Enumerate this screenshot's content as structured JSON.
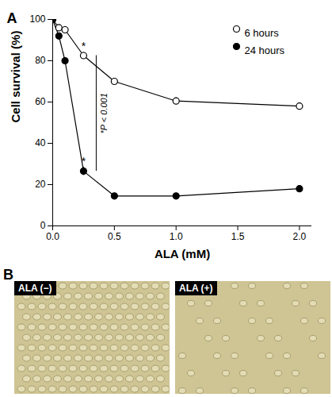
{
  "chart_data": {
    "type": "line",
    "panel": "A",
    "x_label": "ALA (mM)",
    "y_label": "Cell survival (%)",
    "x": [
      0,
      0.05,
      0.1,
      0.25,
      0.5,
      1.0,
      2.0
    ],
    "series": [
      {
        "name": "6 hours",
        "color": "#000000",
        "marker": "open circle",
        "values": [
          100,
          96,
          95,
          82.5,
          70,
          60.5,
          58
        ],
        "error": [
          0,
          1,
          1,
          1.5,
          1,
          1.5,
          1.5
        ]
      },
      {
        "name": "24 hours",
        "color": "#000000",
        "marker": "filled circle",
        "values": [
          100,
          92,
          80,
          26.5,
          14.5,
          14.5,
          18
        ],
        "error": [
          0,
          1.5,
          0.5,
          2,
          0.5,
          0.5,
          0.5
        ]
      }
    ],
    "xlim": [
      0,
      2.1
    ],
    "xticks": [
      {
        "value": 0,
        "label": "0.0"
      },
      0.5,
      {
        "value": 1,
        "label": "1.0"
      },
      1.5,
      {
        "value": 2,
        "label": "2.0"
      }
    ],
    "ylim": [
      0,
      100
    ],
    "yticks": [
      0,
      20,
      40,
      60,
      80,
      100
    ],
    "legend": "top-right",
    "annotations": [
      {
        "text": "*",
        "x": 0.25,
        "y": 87
      },
      {
        "text": "*",
        "x": 0.25,
        "y": 31
      }
    ],
    "comparison": {
      "text": "*P < 0.001",
      "x": 0.25,
      "y1": 82.5,
      "y2": 26.5
    }
  },
  "panel_b": {
    "panel": "B",
    "images": [
      {
        "label": "ALA (−)"
      },
      {
        "label": "ALA (+)"
      }
    ]
  }
}
